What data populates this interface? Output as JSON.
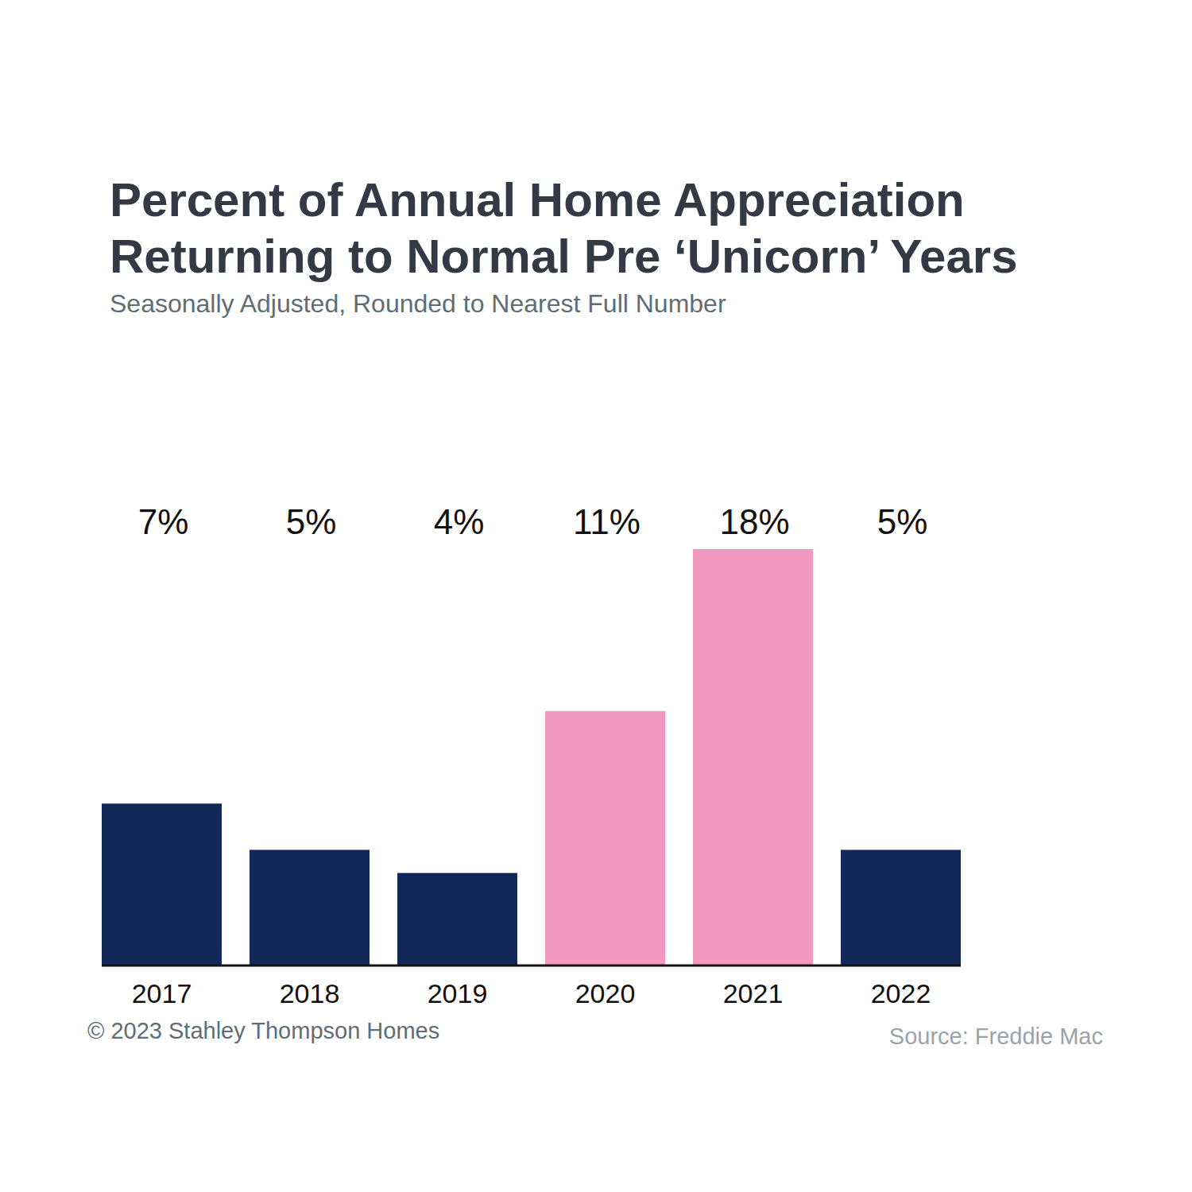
{
  "chart_data": {
    "type": "bar",
    "title": [
      "Percent of Annual Home Appreciation",
      "Returning to Normal Pre ‘Unicorn’ Years"
    ],
    "subtitle": "Seasonally Adjusted, Rounded to Nearest Full Number",
    "categories": [
      "2017",
      "2018",
      "2019",
      "2020",
      "2021",
      "2022"
    ],
    "values": [
      7,
      5,
      4,
      11,
      18,
      5
    ],
    "value_labels": [
      "7%",
      "5%",
      "4%",
      "11%",
      "18%",
      "5%"
    ],
    "colors": [
      "#122858",
      "#122858",
      "#122858",
      "#f399c1",
      "#f399c1",
      "#122858"
    ],
    "ylim": [
      0,
      18
    ],
    "data_labels": true,
    "tick_labels": "x",
    "grid": false,
    "copyright": "© 2023 Stahley Thompson Homes",
    "source": "Source: Freddie Mac"
  }
}
